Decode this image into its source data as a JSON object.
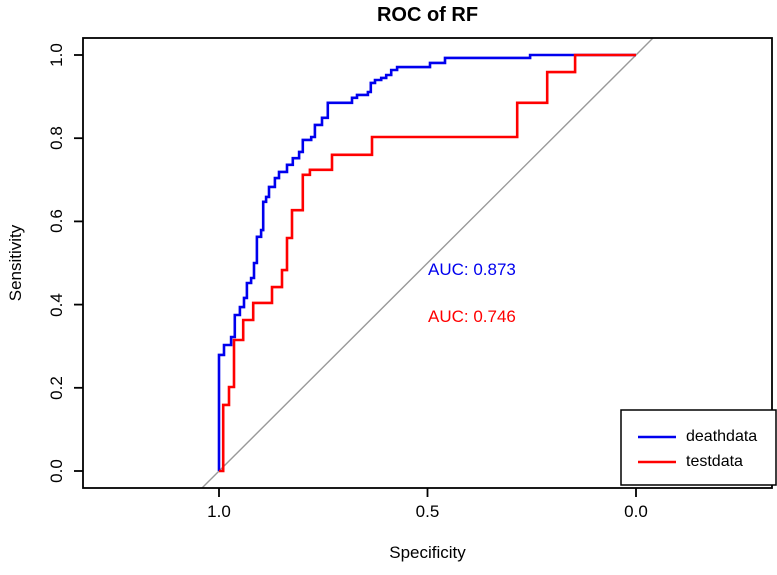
{
  "title": "ROC of RF",
  "axes": {
    "xlabel": "Specificity",
    "ylabel": "Sensitivity",
    "x_tick_labels": [
      "1.0",
      "0.5",
      "0.0"
    ],
    "y_tick_labels": [
      "0.0",
      "0.2",
      "0.4",
      "0.6",
      "0.8",
      "1.0"
    ]
  },
  "annotations": {
    "auc_deathdata": "AUC: 0.873",
    "auc_testdata": "AUC: 0.746"
  },
  "legend": {
    "items": [
      {
        "label": "deathdata",
        "color": "#0000ee"
      },
      {
        "label": "testdata",
        "color": "#ff0000"
      }
    ]
  },
  "colors": {
    "deathdata": "#0000ee",
    "testdata": "#ff0000",
    "diagonal": "#999999",
    "axis": "#000000"
  },
  "chart_data": {
    "type": "line",
    "subtype": "roc-step-curves",
    "title": "ROC of RF",
    "xlabel": "Specificity",
    "ylabel": "Sensitivity",
    "xlim": [
      1.0,
      0.0
    ],
    "ylim": [
      0.0,
      1.0
    ],
    "x_ticks": [
      1.0,
      0.5,
      0.0
    ],
    "y_ticks": [
      0.0,
      0.2,
      0.4,
      0.6,
      0.8,
      1.0
    ],
    "grid": false,
    "diagonal_reference": true,
    "legend_position": "bottomright",
    "series": [
      {
        "name": "deathdata",
        "color": "#0000ee",
        "auc": 0.873,
        "points": [
          [
            1.0,
            0.0
          ],
          [
            1.0,
            0.279
          ],
          [
            0.988,
            0.279
          ],
          [
            0.988,
            0.303
          ],
          [
            0.971,
            0.303
          ],
          [
            0.971,
            0.322
          ],
          [
            0.962,
            0.322
          ],
          [
            0.962,
            0.375
          ],
          [
            0.95,
            0.375
          ],
          [
            0.95,
            0.394
          ],
          [
            0.94,
            0.394
          ],
          [
            0.94,
            0.416
          ],
          [
            0.933,
            0.416
          ],
          [
            0.933,
            0.452
          ],
          [
            0.923,
            0.452
          ],
          [
            0.923,
            0.464
          ],
          [
            0.916,
            0.464
          ],
          [
            0.916,
            0.5
          ],
          [
            0.909,
            0.5
          ],
          [
            0.909,
            0.563
          ],
          [
            0.899,
            0.563
          ],
          [
            0.899,
            0.579
          ],
          [
            0.894,
            0.579
          ],
          [
            0.894,
            0.647
          ],
          [
            0.887,
            0.647
          ],
          [
            0.887,
            0.659
          ],
          [
            0.88,
            0.659
          ],
          [
            0.88,
            0.683
          ],
          [
            0.866,
            0.683
          ],
          [
            0.866,
            0.704
          ],
          [
            0.856,
            0.704
          ],
          [
            0.856,
            0.719
          ],
          [
            0.837,
            0.719
          ],
          [
            0.837,
            0.736
          ],
          [
            0.823,
            0.736
          ],
          [
            0.823,
            0.752
          ],
          [
            0.808,
            0.752
          ],
          [
            0.808,
            0.767
          ],
          [
            0.799,
            0.767
          ],
          [
            0.799,
            0.796
          ],
          [
            0.779,
            0.796
          ],
          [
            0.779,
            0.803
          ],
          [
            0.77,
            0.803
          ],
          [
            0.77,
            0.832
          ],
          [
            0.753,
            0.832
          ],
          [
            0.753,
            0.849
          ],
          [
            0.739,
            0.849
          ],
          [
            0.739,
            0.885
          ],
          [
            0.681,
            0.885
          ],
          [
            0.681,
            0.897
          ],
          [
            0.669,
            0.897
          ],
          [
            0.669,
            0.904
          ],
          [
            0.643,
            0.904
          ],
          [
            0.643,
            0.911
          ],
          [
            0.636,
            0.911
          ],
          [
            0.636,
            0.933
          ],
          [
            0.626,
            0.933
          ],
          [
            0.626,
            0.94
          ],
          [
            0.611,
            0.94
          ],
          [
            0.611,
            0.945
          ],
          [
            0.599,
            0.945
          ],
          [
            0.599,
            0.952
          ],
          [
            0.587,
            0.952
          ],
          [
            0.587,
            0.964
          ],
          [
            0.573,
            0.964
          ],
          [
            0.573,
            0.971
          ],
          [
            0.494,
            0.971
          ],
          [
            0.494,
            0.981
          ],
          [
            0.458,
            0.981
          ],
          [
            0.458,
            0.993
          ],
          [
            0.422,
            0.993
          ],
          [
            0.254,
            0.993
          ],
          [
            0.254,
            1.0
          ],
          [
            0.0,
            1.0
          ]
        ]
      },
      {
        "name": "testdata",
        "color": "#ff0000",
        "auc": 0.746,
        "points": [
          [
            1.0,
            0.0
          ],
          [
            0.99,
            0.0
          ],
          [
            0.99,
            0.159
          ],
          [
            0.976,
            0.159
          ],
          [
            0.976,
            0.202
          ],
          [
            0.964,
            0.202
          ],
          [
            0.964,
            0.315
          ],
          [
            0.942,
            0.315
          ],
          [
            0.942,
            0.363
          ],
          [
            0.918,
            0.363
          ],
          [
            0.918,
            0.404
          ],
          [
            0.873,
            0.404
          ],
          [
            0.873,
            0.442
          ],
          [
            0.849,
            0.442
          ],
          [
            0.849,
            0.483
          ],
          [
            0.837,
            0.483
          ],
          [
            0.837,
            0.56
          ],
          [
            0.825,
            0.56
          ],
          [
            0.825,
            0.627
          ],
          [
            0.799,
            0.627
          ],
          [
            0.799,
            0.712
          ],
          [
            0.782,
            0.712
          ],
          [
            0.782,
            0.724
          ],
          [
            0.729,
            0.724
          ],
          [
            0.729,
            0.76
          ],
          [
            0.633,
            0.76
          ],
          [
            0.633,
            0.803
          ],
          [
            0.285,
            0.803
          ],
          [
            0.285,
            0.885
          ],
          [
            0.213,
            0.885
          ],
          [
            0.213,
            0.959
          ],
          [
            0.146,
            0.959
          ],
          [
            0.146,
            1.0
          ],
          [
            0.0,
            1.0
          ]
        ]
      }
    ]
  }
}
